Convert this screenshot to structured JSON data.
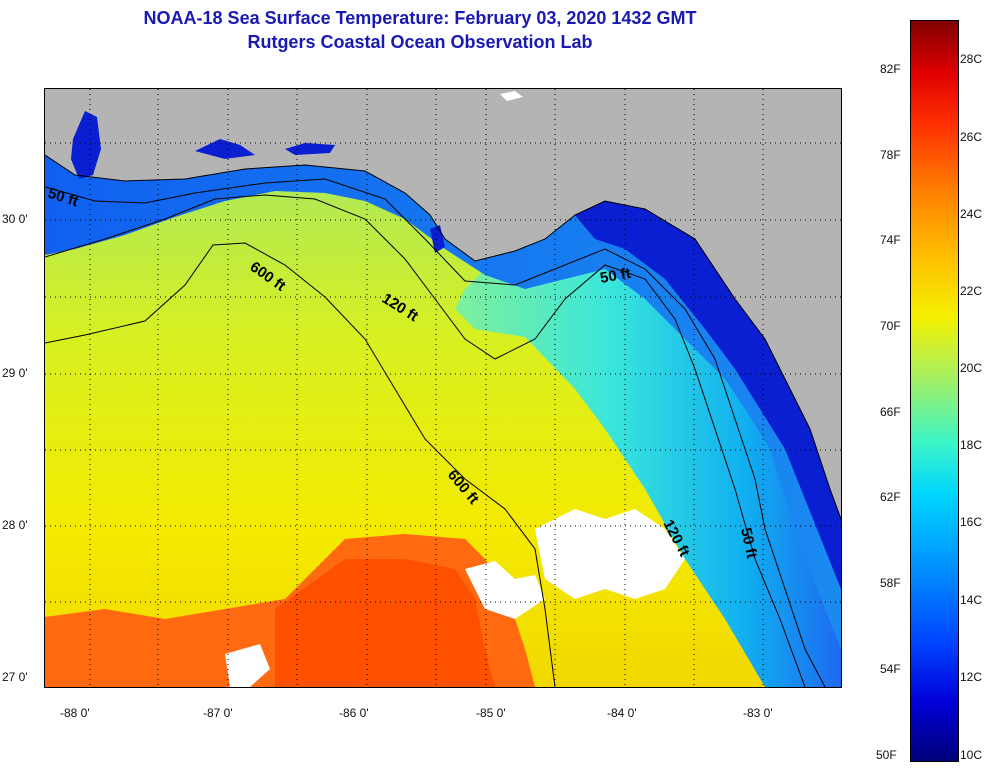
{
  "title": {
    "line1": "NOAA-18 Sea Surface Temperature:  February 03, 2020 1432 GMT",
    "line2": "Rutgers Coastal Ocean Observation Lab"
  },
  "map": {
    "x_ticks": [
      "-88 0'",
      "-87 0'",
      "-86 0'",
      "-85 0'",
      "-84 0'",
      "-83 0'"
    ],
    "y_ticks": [
      "30 0'",
      "29 0'",
      "28 0'",
      "27 0'"
    ],
    "depth_labels": [
      "50 ft",
      "600 ft",
      "120 ft",
      "50 ft",
      "600 ft",
      "120 ft",
      "50 ft"
    ],
    "colors": {
      "land": "#b4b4b4",
      "cloud": "#ffffff",
      "cold": "#0a1ed2",
      "warm": "#ff5a0a"
    }
  },
  "colorbar": {
    "fahrenheit": [
      "82F",
      "78F",
      "74F",
      "70F",
      "66F",
      "62F",
      "58F",
      "54F",
      "50F"
    ],
    "celsius": [
      "28C",
      "26C",
      "24C",
      "22C",
      "20C",
      "18C",
      "16C",
      "14C",
      "12C",
      "10C"
    ],
    "range_c": [
      10,
      29
    ]
  }
}
